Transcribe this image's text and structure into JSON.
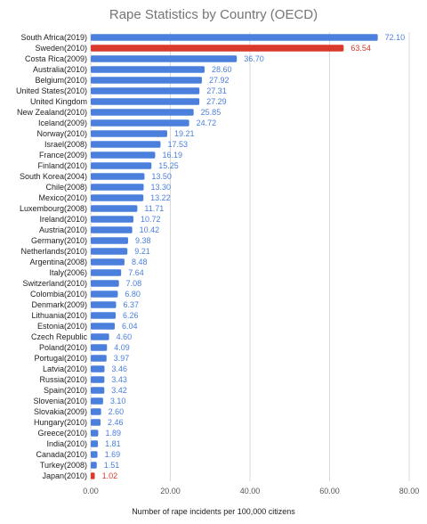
{
  "chart_data": {
    "type": "bar",
    "orientation": "horizontal",
    "title": "Rape Statistics by Country (OECD)",
    "xlabel": "Number of rape incidents per 100,000 citizens",
    "ylabel": "",
    "xlim": [
      0,
      80
    ],
    "x_ticks": [
      "0.00",
      "20.00",
      "40.00",
      "60.00",
      "80.00"
    ],
    "grid": true,
    "legend": "none",
    "colors": {
      "default": "#4a7fdc",
      "highlight": "#d93a2b",
      "label_default": "#4a7fdc",
      "label_highlight": "#d93a2b"
    },
    "categories": [
      "South Africa(2019)",
      "Sweden(2010)",
      "Costa Rica(2009)",
      "Australia(2010)",
      "Belgium(2010)",
      "United States(2010)",
      "United Kingdom",
      "New Zealand(2010)",
      "Iceland(2009)",
      "Norway(2010)",
      "Israel(2008)",
      "France(2009)",
      "Finland(2010)",
      "South Korea(2004)",
      "Chile(2008)",
      "Mexico(2010)",
      "Luxembourg(2008)",
      "Ireland(2010)",
      "Austria(2010)",
      "Germany(2010)",
      "Netherlands(2010)",
      "Argentina(2008)",
      "Italy(2006)",
      "Switzerland(2010)",
      "Colombia(2010)",
      "Denmark(2009)",
      "Lithuania(2010)",
      "Estonia(2010)",
      "Czech Republic",
      "Poland(2010)",
      "Portugal(2010)",
      "Latvia(2010)",
      "Russia(2010)",
      "Spain(2010)",
      "Slovenia(2010)",
      "Slovakia(2009)",
      "Hungary(2010)",
      "Greece(2010)",
      "India(2010)",
      "Canada(2010)",
      "Turkey(2008)",
      "Japan(2010)"
    ],
    "values": [
      72.1,
      63.54,
      36.7,
      28.6,
      27.92,
      27.31,
      27.29,
      25.85,
      24.72,
      19.21,
      17.53,
      16.19,
      15.25,
      13.5,
      13.3,
      13.22,
      11.71,
      10.72,
      10.42,
      9.38,
      9.21,
      8.48,
      7.64,
      7.08,
      6.8,
      6.37,
      6.26,
      6.04,
      4.6,
      4.09,
      3.97,
      3.46,
      3.43,
      3.42,
      3.1,
      2.6,
      2.46,
      1.89,
      1.81,
      1.69,
      1.51,
      1.02
    ],
    "value_labels": [
      "72.10",
      "63.54",
      "36.70",
      "28.60",
      "27.92",
      "27.31",
      "27.29",
      "25.85",
      "24.72",
      "19.21",
      "17.53",
      "16.19",
      "15.25",
      "13.50",
      "13.30",
      "13.22",
      "11.71",
      "10.72",
      "10.42",
      "9.38",
      "9.21",
      "8.48",
      "7.64",
      "7.08",
      "6.80",
      "6.37",
      "6.26",
      "6.04",
      "4.60",
      "4.09",
      "3.97",
      "3.46",
      "3.43",
      "3.42",
      "3.10",
      "2.60",
      "2.46",
      "1.89",
      "1.81",
      "1.69",
      "1.51",
      "1.02"
    ],
    "highlighted": [
      "Sweden(2010)",
      "Japan(2010)"
    ]
  }
}
